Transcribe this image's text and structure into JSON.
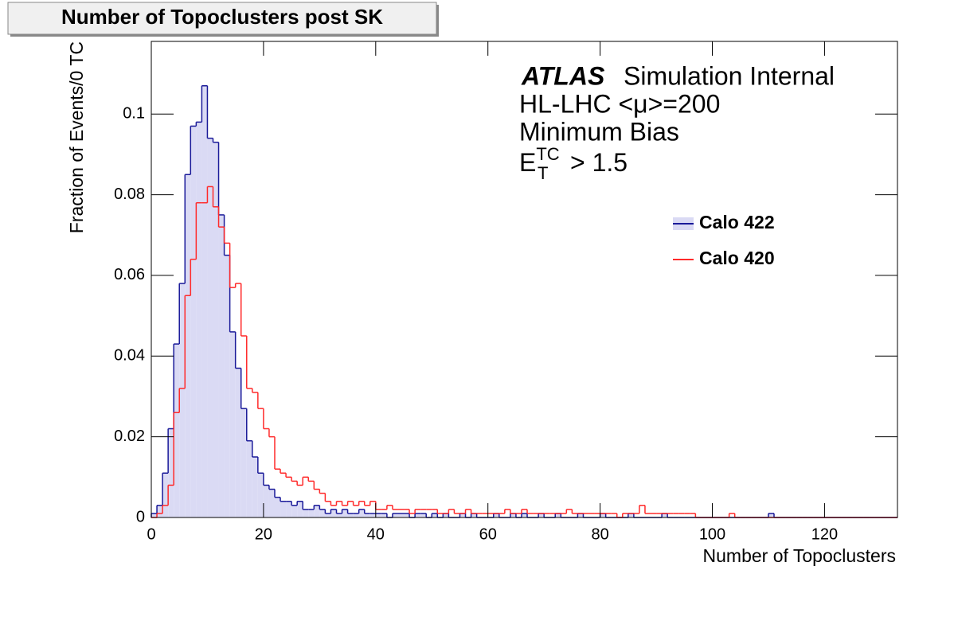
{
  "chart_data": {
    "type": "histogram",
    "title": "Number of Topoclusters post SK",
    "x_label": "Number of Topoclusters",
    "y_label": "Fraction of Events/0 TC",
    "annotations": [
      "ATLAS",
      "Simulation Internal",
      "HL-LHC <μ>=200",
      "Minimum Bias"
    ],
    "cut_label": {
      "base": "E",
      "sup": "TC",
      "sub": "T",
      "rest": "> 1.5"
    },
    "xlim": [
      0,
      133
    ],
    "ylim": [
      0,
      0.118
    ],
    "xticks": [
      0,
      20,
      40,
      60,
      80,
      100,
      120
    ],
    "yticks": [
      0,
      0.02,
      0.04,
      0.06,
      0.08,
      0.1
    ],
    "legend": "right",
    "bins": [
      0,
      1,
      2,
      3,
      4,
      5,
      6,
      7,
      8,
      9,
      10,
      11,
      12,
      13,
      14,
      15,
      16,
      17,
      18,
      19,
      20,
      21,
      22,
      23,
      24,
      25,
      26,
      27,
      28,
      29,
      30,
      31,
      32,
      33,
      34,
      35,
      36,
      37,
      38,
      39,
      40,
      41,
      42,
      43,
      44,
      45,
      46,
      47,
      48,
      49,
      50,
      51,
      52,
      53,
      54,
      55,
      56,
      57,
      58,
      59,
      60,
      61,
      62,
      63,
      64,
      65,
      66,
      67,
      68,
      69,
      70,
      71,
      72,
      73,
      74,
      75,
      76,
      77,
      78,
      79,
      80,
      81,
      82,
      83,
      84,
      85,
      86,
      87,
      88,
      89,
      90,
      91,
      92,
      93,
      94,
      95,
      96,
      97,
      98,
      99,
      100,
      101,
      102,
      103,
      104,
      105,
      106,
      107,
      108,
      109,
      110,
      111,
      112,
      113,
      114,
      115,
      116,
      117,
      118,
      119,
      120,
      121,
      122,
      123,
      124,
      125,
      126,
      127,
      128,
      129,
      130,
      131,
      132,
      133
    ],
    "series": [
      {
        "name": "Calo 422",
        "color": "#1a1a99",
        "fill": "#dadaf4",
        "values": [
          0.001,
          0.003,
          0.011,
          0.022,
          0.043,
          0.058,
          0.085,
          0.097,
          0.098,
          0.107,
          0.094,
          0.093,
          0.075,
          0.065,
          0.046,
          0.037,
          0.027,
          0.019,
          0.015,
          0.011,
          0.008,
          0.007,
          0.005,
          0.004,
          0.004,
          0.003,
          0.004,
          0.002,
          0.002,
          0.003,
          0.002,
          0.001,
          0.002,
          0.001,
          0.002,
          0.001,
          0.001,
          0.002,
          0.001,
          0.001,
          0.001,
          0.001,
          0,
          0.001,
          0.001,
          0.001,
          0,
          0.001,
          0.001,
          0,
          0.001,
          0,
          0.001,
          0,
          0,
          0.001,
          0,
          0.001,
          0,
          0,
          0,
          0.001,
          0,
          0,
          0.001,
          0,
          0.001,
          0,
          0,
          0.001,
          0,
          0,
          0.001,
          0,
          0,
          0,
          0.001,
          0,
          0,
          0,
          0.001,
          0,
          0,
          0,
          0,
          0.001,
          0,
          0,
          0,
          0,
          0,
          0.001,
          0,
          0,
          0,
          0,
          0,
          0,
          0,
          0,
          0,
          0,
          0,
          0,
          0,
          0,
          0,
          0,
          0,
          0,
          0.001,
          0,
          0,
          0,
          0,
          0,
          0,
          0,
          0,
          0,
          0,
          0,
          0,
          0,
          0,
          0,
          0,
          0,
          0,
          0,
          0,
          0,
          0
        ]
      },
      {
        "name": "Calo 420",
        "color": "#ff2a2a",
        "values": [
          0,
          0.001,
          0.003,
          0.008,
          0.026,
          0.032,
          0.055,
          0.064,
          0.078,
          0.078,
          0.082,
          0.077,
          0.072,
          0.068,
          0.057,
          0.058,
          0.045,
          0.032,
          0.031,
          0.027,
          0.022,
          0.02,
          0.012,
          0.011,
          0.01,
          0.009,
          0.008,
          0.01,
          0.009,
          0.007,
          0.006,
          0.004,
          0.003,
          0.004,
          0.003,
          0.004,
          0.003,
          0.004,
          0.003,
          0.004,
          0.002,
          0.002,
          0.003,
          0.002,
          0.002,
          0.002,
          0.001,
          0.002,
          0.002,
          0.002,
          0.002,
          0.001,
          0.001,
          0.002,
          0.001,
          0.001,
          0.002,
          0.001,
          0.001,
          0.001,
          0.001,
          0.001,
          0.001,
          0.002,
          0.001,
          0.001,
          0.002,
          0.001,
          0.001,
          0.001,
          0.001,
          0.001,
          0.001,
          0.001,
          0.002,
          0.001,
          0.001,
          0.001,
          0.001,
          0.001,
          0.001,
          0.001,
          0.001,
          0,
          0.001,
          0.001,
          0.001,
          0.003,
          0.001,
          0.001,
          0.001,
          0.001,
          0.001,
          0.001,
          0.001,
          0.001,
          0.001,
          0,
          0,
          0,
          0,
          0,
          0,
          0.001,
          0,
          0,
          0,
          0,
          0,
          0,
          0,
          0,
          0,
          0,
          0,
          0,
          0,
          0,
          0,
          0,
          0,
          0,
          0,
          0,
          0,
          0,
          0,
          0,
          0,
          0,
          0,
          0,
          0
        ]
      }
    ]
  }
}
